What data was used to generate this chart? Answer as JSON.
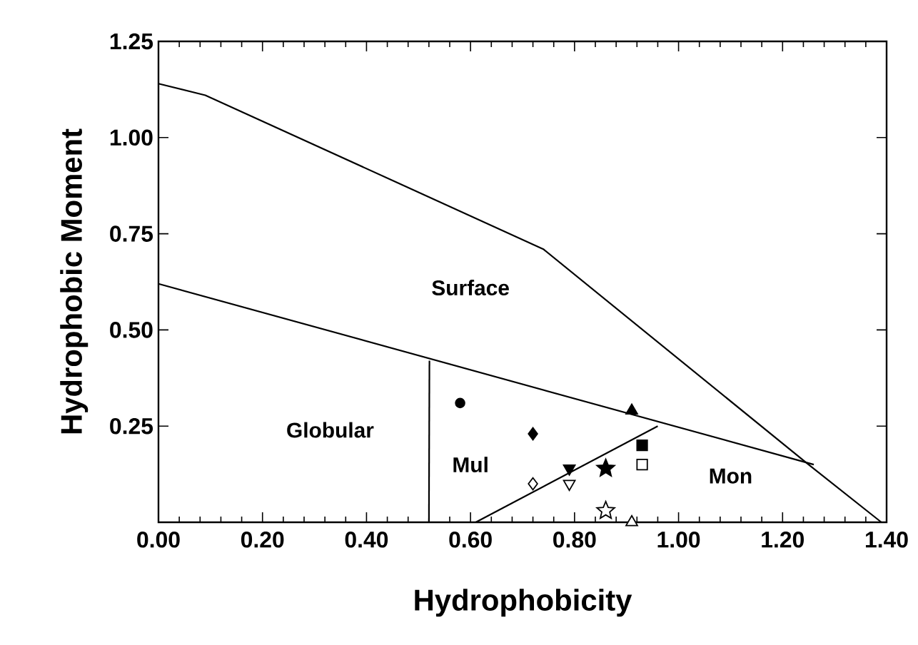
{
  "chart_data": {
    "type": "scatter",
    "xlabel": "Hydrophobicity",
    "ylabel": "Hydrophobic Moment",
    "xlim": [
      0,
      1.4
    ],
    "ylim": [
      0,
      1.25
    ],
    "xticks": [
      {
        "value": 0,
        "label": "0.00"
      },
      {
        "value": 0.2,
        "label": "0.20"
      },
      {
        "value": 0.4,
        "label": "0.40"
      },
      {
        "value": 0.6,
        "label": "0.60"
      },
      {
        "value": 0.8,
        "label": "0.80"
      },
      {
        "value": 1.0,
        "label": "1.00"
      },
      {
        "value": 1.2,
        "label": "1.20"
      },
      {
        "value": 1.4,
        "label": "1.40"
      }
    ],
    "yticks": [
      {
        "value": 0,
        "label": null
      },
      {
        "value": 0.25,
        "label": "0.25"
      },
      {
        "value": 0.5,
        "label": "0.50"
      },
      {
        "value": 0.75,
        "label": "0.75"
      },
      {
        "value": 1.0,
        "label": "1.00"
      },
      {
        "value": 1.25,
        "label": "1.25"
      }
    ],
    "grid": false,
    "annotations": [
      "Surface",
      "Globular",
      "Mul",
      "Mon"
    ],
    "series": [
      {
        "type": "line",
        "color": "#000000",
        "line_style": "solid",
        "x": [
          0,
          0.09,
          0.74,
          1.25,
          1.39
        ],
        "values": [
          1.14,
          1.11,
          0.71,
          0.15,
          0
        ]
      },
      {
        "type": "line",
        "color": "#000000",
        "line_style": "solid",
        "x": [
          0,
          1.26
        ],
        "values": [
          0.62,
          0.15
        ]
      },
      {
        "type": "line",
        "color": "#000000",
        "line_style": "solid",
        "x": [
          0.52,
          0.521
        ],
        "values": [
          0,
          0.42
        ]
      },
      {
        "type": "line",
        "color": "#000000",
        "line_style": "solid",
        "x": [
          0.61,
          0.96
        ],
        "values": [
          0,
          0.25
        ]
      },
      {
        "color": "#000000",
        "marker": "circle",
        "x": [
          0.58
        ],
        "values": [
          0.31
        ]
      },
      {
        "color": "#000000",
        "marker": "diamond",
        "x": [
          0.72
        ],
        "values": [
          0.23
        ]
      },
      {
        "color": "#000000",
        "marker": "triangle",
        "x": [
          0.91
        ],
        "values": [
          0.29
        ]
      },
      {
        "color": "#000000",
        "marker": "triangle",
        "x": [
          0.79
        ],
        "values": [
          0.14
        ]
      },
      {
        "color": "#000000",
        "marker": "star",
        "x": [
          0.86
        ],
        "values": [
          0.14
        ]
      },
      {
        "color": "#000000",
        "marker": "square",
        "x": [
          0.93
        ],
        "values": [
          0.2
        ]
      },
      {
        "color": "#ffffff",
        "marker": "diamond",
        "x": [
          0.72
        ],
        "values": [
          0.1
        ]
      },
      {
        "color": "#ffffff",
        "marker": "triangle",
        "x": [
          0.79
        ],
        "values": [
          0.1
        ]
      },
      {
        "color": "#ffffff",
        "marker": "star",
        "x": [
          0.86
        ],
        "values": [
          0.03
        ]
      },
      {
        "color": "#ffffff",
        "marker": "square",
        "x": [
          0.93
        ],
        "values": [
          0.15
        ]
      },
      {
        "color": "#ffffff",
        "marker": "triangle",
        "x": [
          0.91
        ],
        "values": [
          0.0
        ]
      }
    ]
  }
}
